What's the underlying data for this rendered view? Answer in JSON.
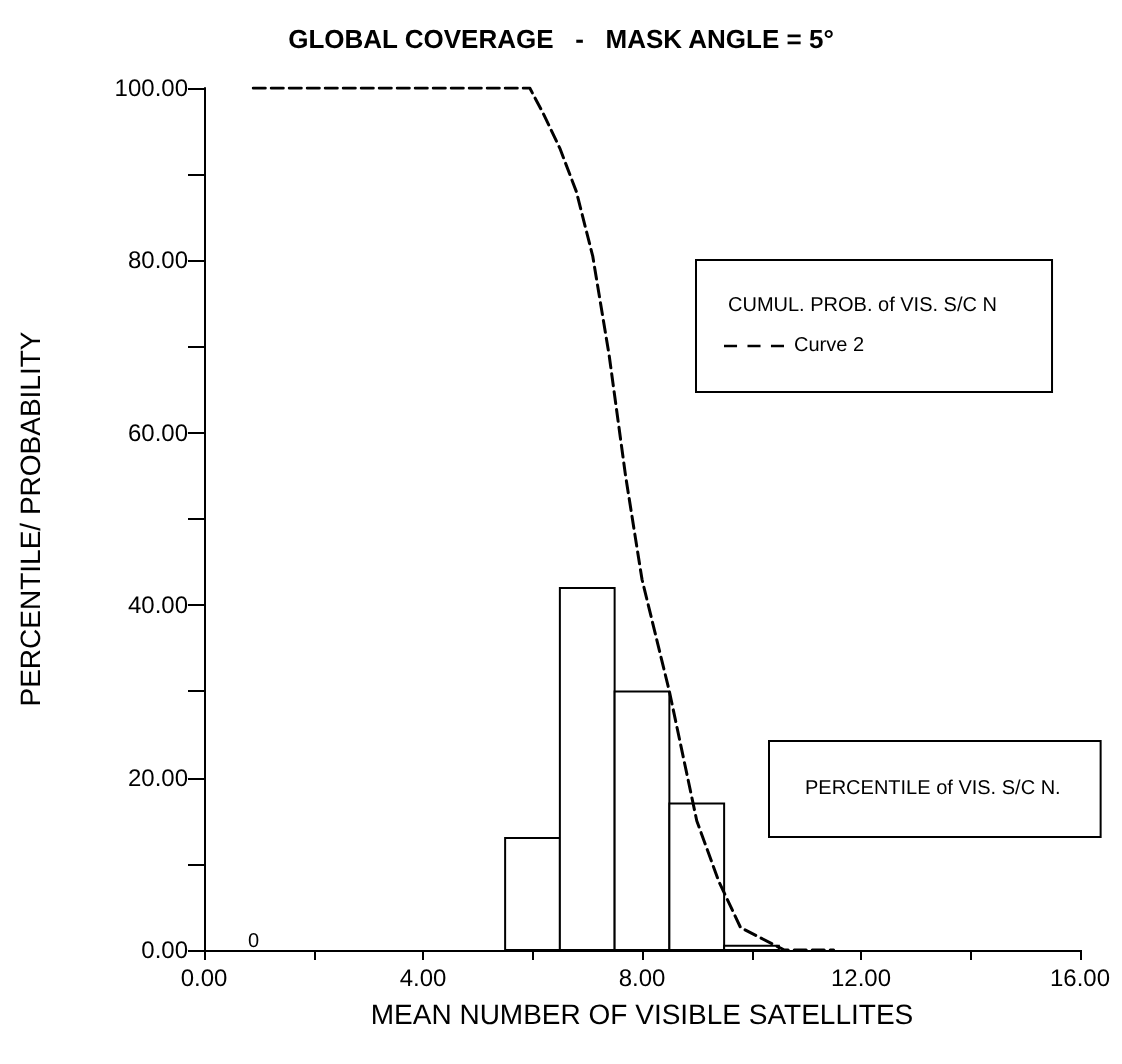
{
  "chart_data": {
    "type": "histogram",
    "title": "GLOBAL COVERAGE   -   MASK ANGLE = 5°",
    "xlabel": "MEAN NUMBER OF VISIBLE SATELLITES",
    "ylabel": "PERCENTILE/ PROBABILITY",
    "bins": [
      5.5,
      6.5,
      7.5,
      8.5,
      9.5,
      10.5
    ],
    "values": [
      13,
      42,
      30,
      17,
      0.5
    ],
    "color": "#ffffff",
    "series": [
      {
        "type": "line",
        "name": "Curve 2",
        "color": "#000000",
        "line_style": "dashed",
        "marker": "none",
        "x": [
          0.9,
          2.0,
          3.0,
          4.0,
          5.0,
          5.95,
          6.2,
          6.5,
          6.8,
          7.1,
          7.4,
          7.7,
          8.0,
          8.5,
          9.0,
          9.4,
          9.8,
          10.6,
          11.5
        ],
        "values": [
          100,
          100,
          100,
          100,
          100,
          100,
          97,
          93,
          88,
          80.5,
          69,
          55,
          43,
          30,
          15,
          8,
          2.6,
          0,
          0
        ]
      }
    ],
    "legend": "right",
    "legend_title": "CUMUL. PROB. of VIS. S/C N",
    "annotations": [
      "PERCENTILE of VIS. S/C N.",
      "0"
    ],
    "xlim": [
      0,
      16
    ],
    "xticks": [
      {
        "value": 0,
        "label": "0.00"
      },
      {
        "value": 2,
        "label": null
      },
      {
        "value": 4,
        "label": "4.00"
      },
      {
        "value": 6,
        "label": null
      },
      {
        "value": 8,
        "label": "8.00"
      },
      {
        "value": 10,
        "label": null
      },
      {
        "value": 12,
        "label": "12.00"
      },
      {
        "value": 14,
        "label": null
      },
      {
        "value": 16,
        "label": "16.00"
      }
    ],
    "ylim": [
      0,
      100
    ],
    "yticks": [
      {
        "value": 0,
        "label": "0.00"
      },
      {
        "value": 10,
        "label": null
      },
      {
        "value": 20,
        "label": "20.00"
      },
      {
        "value": 30,
        "label": null
      },
      {
        "value": 40,
        "label": "40.00"
      },
      {
        "value": 50,
        "label": null
      },
      {
        "value": 60,
        "label": "60.00"
      },
      {
        "value": 70,
        "label": null
      },
      {
        "value": 80,
        "label": "80.00"
      },
      {
        "value": 90,
        "label": null
      },
      {
        "value": 100,
        "label": "100.00"
      }
    ],
    "grid": false
  }
}
